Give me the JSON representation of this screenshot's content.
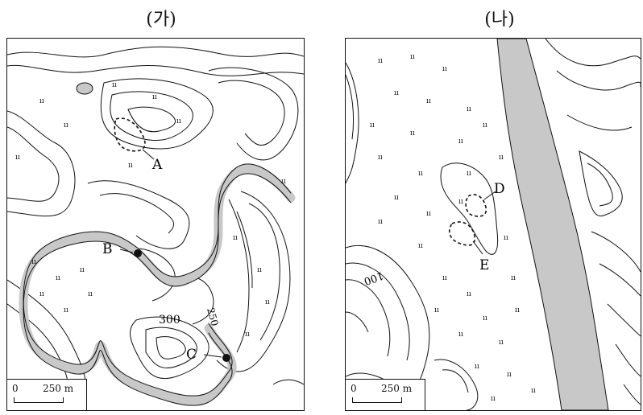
{
  "panels": [
    {
      "title": "(가)",
      "scale": {
        "zero": "0",
        "distance": "250 m"
      },
      "labels": {
        "A": "A",
        "B": "B",
        "C": "C",
        "contour_300": "300",
        "contour_250": "250"
      }
    },
    {
      "title": "(나)",
      "scale": {
        "zero": "0",
        "distance": "250 m"
      },
      "labels": {
        "D": "D",
        "E": "E",
        "contour_100": "100"
      }
    }
  ],
  "colors": {
    "river": "#c8c8c8",
    "line": "#111111",
    "background": "#ffffff"
  },
  "symbols": {
    "marsh": "marsh-symbol",
    "vegetation": "vegetation-symbol"
  }
}
